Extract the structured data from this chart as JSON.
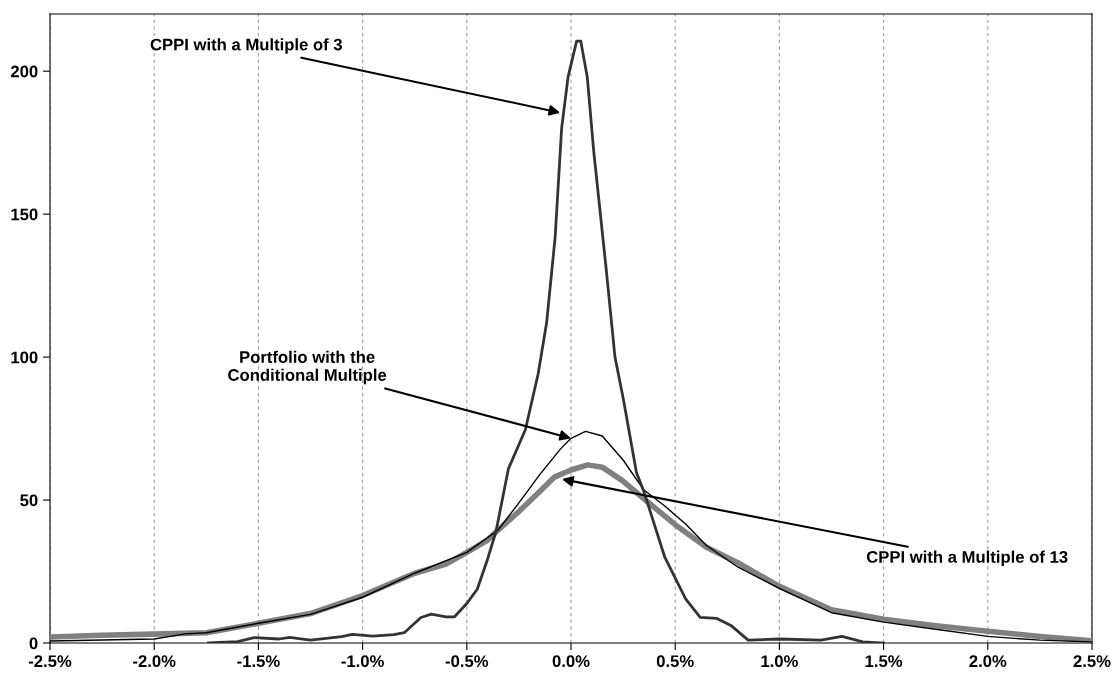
{
  "chart_data": {
    "type": "line",
    "xlim": [
      -2.5,
      2.5
    ],
    "xticks": [
      {
        "value": -2.5,
        "label": "-2.5%"
      },
      {
        "value": -2.0,
        "label": "-2.0%"
      },
      {
        "value": -1.5,
        "label": "-1.5%"
      },
      {
        "value": -1.0,
        "label": "-1.0%"
      },
      {
        "value": -0.5,
        "label": "-0.5%"
      },
      {
        "value": 0.0,
        "label": "0.0%"
      },
      {
        "value": 0.5,
        "label": "0.5%"
      },
      {
        "value": 1.0,
        "label": "1.0%"
      },
      {
        "value": 1.5,
        "label": "1.5%"
      },
      {
        "value": 2.0,
        "label": "2.0%"
      },
      {
        "value": 2.5,
        "label": "2.5%"
      }
    ],
    "ylim": [
      0,
      220
    ],
    "yticks": [
      0,
      50,
      100,
      150,
      200
    ],
    "grid": "x",
    "line_style": "solid",
    "series": [
      {
        "color": "#808080",
        "x": [
          -2.5,
          -2.25,
          -2.0,
          -1.75,
          -1.5,
          -1.25,
          -1.0,
          -0.75,
          -0.6,
          -0.5,
          -0.4,
          -0.35,
          -0.25,
          -0.15,
          -0.08,
          0.0,
          0.08,
          0.15,
          0.25,
          0.35,
          0.5,
          0.65,
          0.8,
          1.0,
          1.25,
          1.5,
          1.75,
          2.0,
          2.25,
          2.5
        ],
        "values": [
          2.1,
          2.7,
          3.1,
          3.6,
          6.9,
          10.3,
          16.6,
          24.4,
          27.6,
          31.7,
          36,
          39.5,
          46,
          53,
          58,
          60.5,
          62.3,
          61.5,
          56.6,
          50.4,
          41.4,
          33.5,
          28.1,
          19.8,
          11.6,
          8.3,
          6,
          4.1,
          2.3,
          0.8
        ]
      },
      {
        "color": "#000000",
        "x": [
          -2.5,
          -2.0,
          -1.85,
          -1.75,
          -1.5,
          -1.25,
          -1.0,
          -0.75,
          -0.5,
          -0.35,
          -0.25,
          -0.15,
          -0.05,
          0.0,
          0.07,
          0.15,
          0.25,
          0.35,
          0.45,
          0.55,
          0.65,
          0.8,
          1.0,
          1.25,
          1.5,
          1.75,
          2.0,
          2.25,
          2.5
        ],
        "values": [
          0.7,
          1.4,
          3.2,
          3.6,
          6.9,
          10,
          16,
          24.4,
          31.7,
          39.5,
          49,
          58.9,
          67.9,
          71.6,
          74,
          72.4,
          64,
          53.5,
          47.9,
          41.6,
          34.1,
          26.6,
          19.1,
          10.6,
          7.3,
          4.8,
          2.3,
          1,
          0.4
        ]
      },
      {
        "color": "#333333",
        "x": [
          -1.74,
          -1.6,
          -1.52,
          -1.4,
          -1.35,
          -1.25,
          -1.1,
          -1.05,
          -0.95,
          -0.85,
          -0.8,
          -0.72,
          -0.67,
          -0.6,
          -0.56,
          -0.5,
          -0.45,
          -0.4,
          -0.36,
          -0.3,
          -0.219,
          -0.158,
          -0.117,
          -0.076,
          -0.045,
          -0.014,
          0.027,
          0.047,
          0.078,
          0.109,
          0.17,
          0.211,
          0.252,
          0.314,
          0.35,
          0.45,
          0.55,
          0.62,
          0.7,
          0.77,
          0.85,
          1.0,
          1.2,
          1.3,
          1.4,
          1.5
        ],
        "values": [
          0,
          0.5,
          1.9,
          1.4,
          2,
          1,
          2.2,
          3,
          2.4,
          2.9,
          3.6,
          8.9,
          10.1,
          9.1,
          9.1,
          13.8,
          18.8,
          29.4,
          39,
          61,
          74.6,
          94,
          112,
          142,
          180,
          198,
          210.5,
          210.5,
          198,
          172,
          130,
          100,
          85,
          59.6,
          52.9,
          30,
          15.4,
          9,
          8.6,
          6,
          1,
          1.4,
          1,
          2.3,
          0.4,
          0
        ]
      }
    ],
    "annotations": [
      {
        "text": "CPPI with a Multiple of 3",
        "x": -0.052,
        "y": 185.5
      },
      {
        "text": "Portfolio with the\nConditional Multiple",
        "x": 0.0,
        "y": 71.6
      },
      {
        "text": "CPPI with a Multiple of 13",
        "x": -0.043,
        "y": 57.3
      }
    ]
  }
}
